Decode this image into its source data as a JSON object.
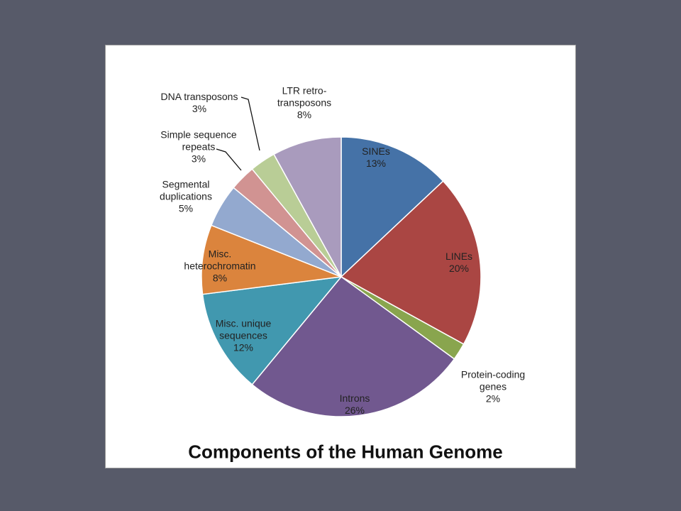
{
  "chart_data": {
    "type": "pie",
    "title": "Components of the Human Genome",
    "categories": [
      "SINEs",
      "LINEs",
      "Protein-coding\ngenes",
      "Introns",
      "Misc. unique\nsequences",
      "Misc.\nheterochromatin",
      "Segmental\nduplications",
      "Simple sequence\nrepeats",
      "DNA transposons",
      "LTR retro-\ntransposons"
    ],
    "values": [
      13,
      20,
      2,
      26,
      12,
      8,
      5,
      3,
      3,
      8
    ],
    "value_labels": [
      "13%",
      "20%",
      "2%",
      "26%",
      "12%",
      "8%",
      "5%",
      "3%",
      "3%",
      "8%"
    ],
    "colors": [
      "#4572a7",
      "#aa4643",
      "#89a54e",
      "#71588f",
      "#4198af",
      "#db843d",
      "#93a9cf",
      "#d19392",
      "#b9cd96",
      "#a99bbd"
    ]
  }
}
